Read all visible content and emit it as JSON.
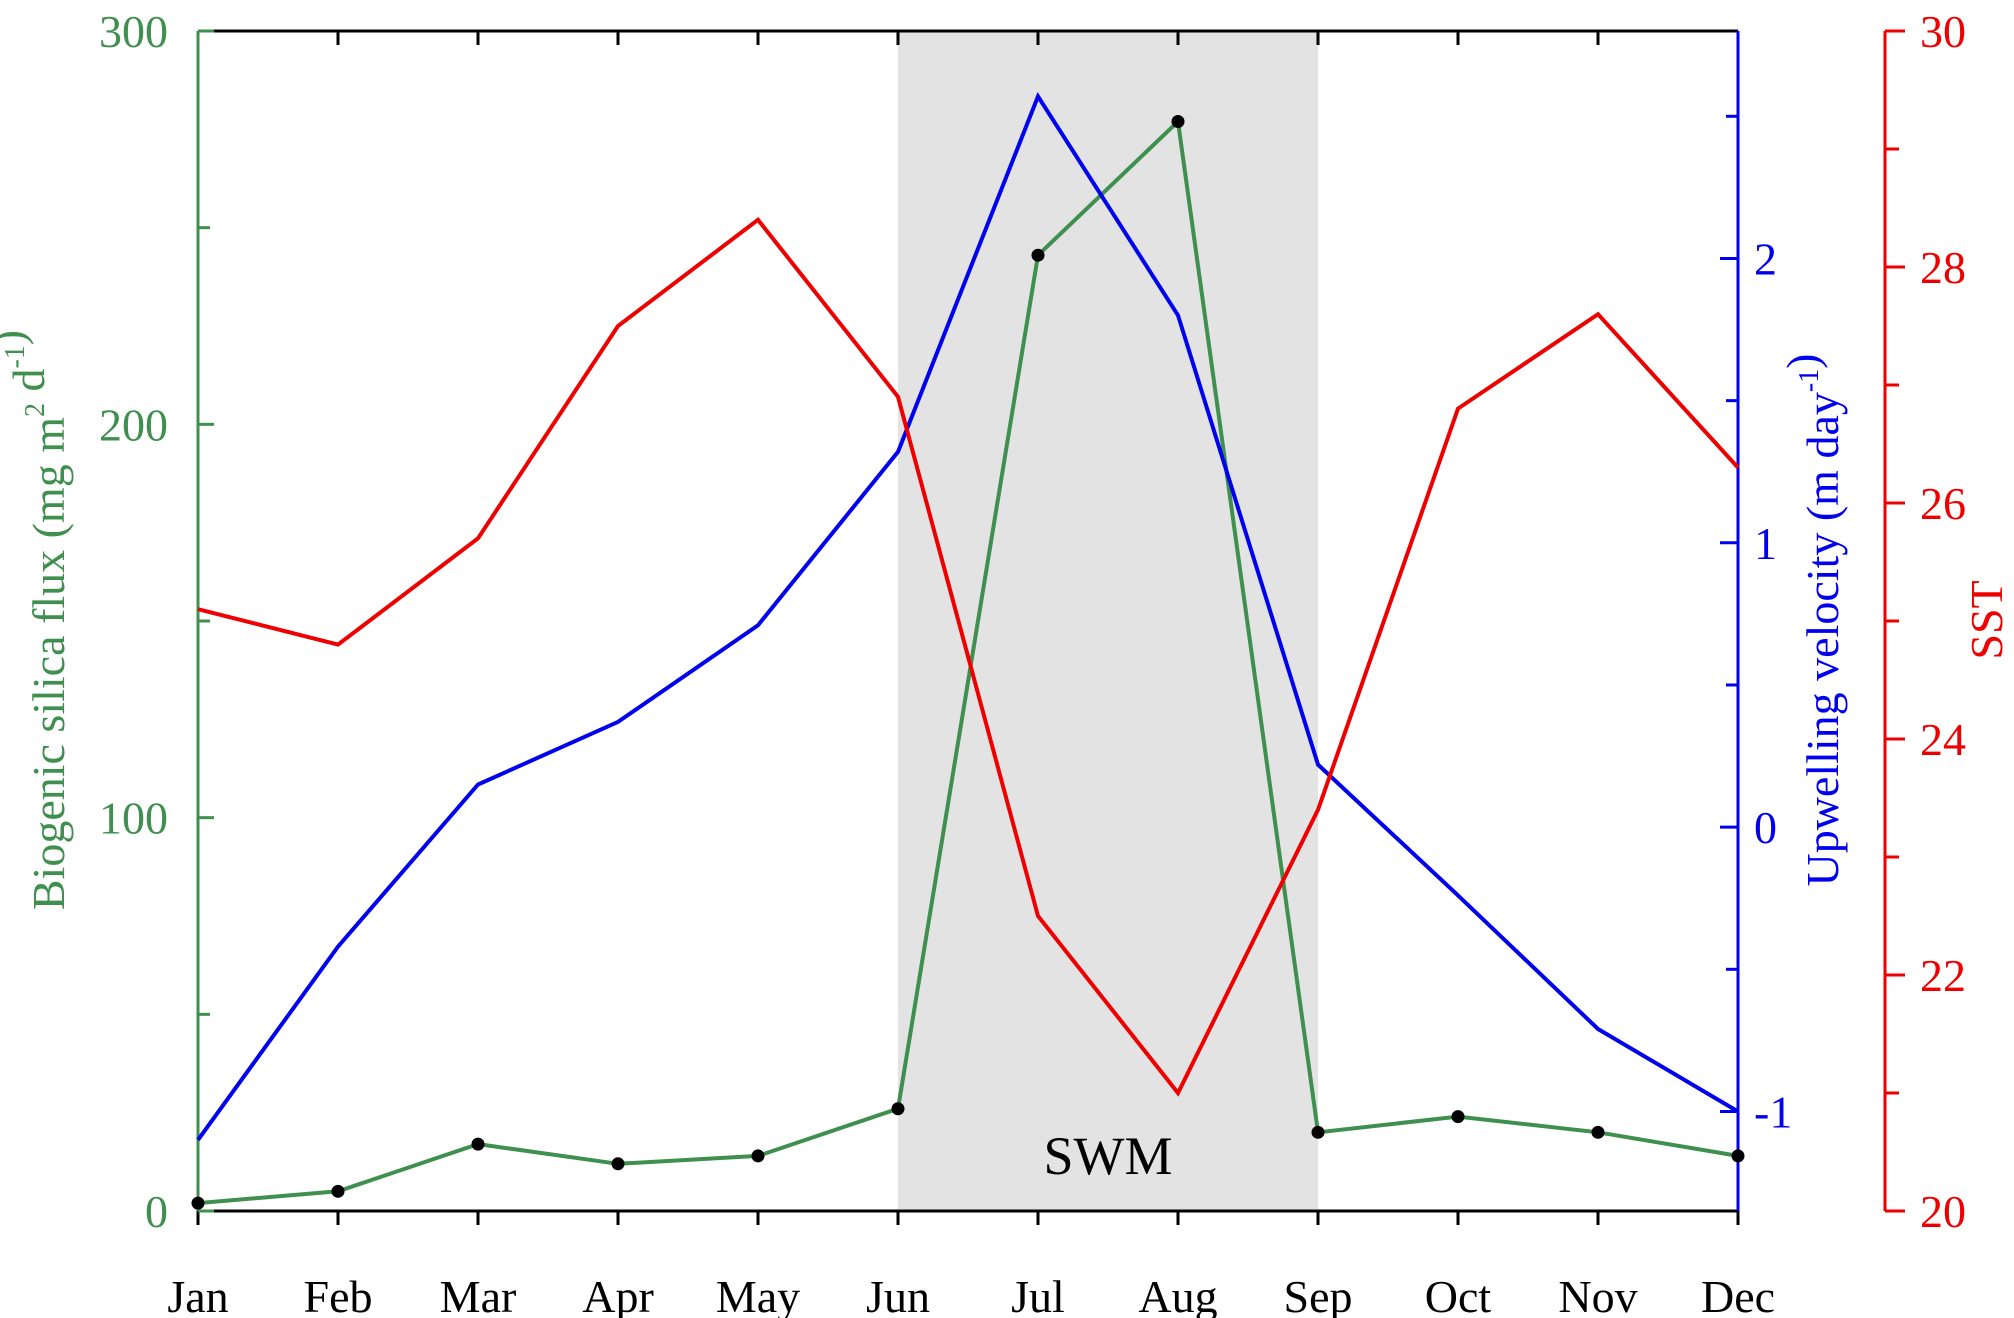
{
  "chart_data": {
    "type": "line",
    "categories": [
      "Jan",
      "Feb",
      "Mar",
      "Apr",
      "May",
      "Jun",
      "Jul",
      "Aug",
      "Sep",
      "Oct",
      "Nov",
      "Dec"
    ],
    "x_axis": {
      "tick_labels": [
        "Jan",
        "Feb",
        "Mar",
        "Apr",
        "May",
        "Jun",
        "Jul",
        "Aug",
        "Sep",
        "Oct",
        "Nov",
        "Dec"
      ]
    },
    "y_axes": {
      "left": {
        "label_main": "Biogenic silica flux (mg m",
        "label_sup1": "2",
        "label_mid": " d",
        "label_sup2": "-1",
        "label_end": ")",
        "ylim": [
          0,
          300
        ],
        "ticks": [
          0,
          100,
          200,
          300
        ],
        "tick_labels": [
          "0",
          "100",
          "200",
          "300"
        ],
        "color": "#3f8f4f"
      },
      "right1": {
        "label_main": "Upwelling velocity (m day",
        "label_sup": "-1",
        "label_end": ")",
        "ylim": [
          -1.35,
          2.8
        ],
        "ticks": [
          -1,
          0,
          1,
          2
        ],
        "tick_labels": [
          "-1",
          "0",
          "1",
          "2"
        ],
        "color": "#0000ee"
      },
      "right2": {
        "label": "SST",
        "ylim": [
          20,
          30
        ],
        "ticks": [
          20,
          22,
          24,
          26,
          28,
          30
        ],
        "tick_labels": [
          "20",
          "22",
          "24",
          "26",
          "28",
          "30"
        ],
        "color": "#ee0000"
      }
    },
    "series": [
      {
        "axis": "left",
        "color": "#3f8f4f",
        "markers": true,
        "values": [
          2,
          5,
          17,
          12,
          14,
          26,
          243,
          277,
          20,
          24,
          20,
          14
        ]
      },
      {
        "axis": "right1",
        "color": "#0000ee",
        "markers": false,
        "values": [
          -1.1,
          -0.42,
          0.15,
          0.37,
          0.71,
          1.32,
          2.57,
          1.8,
          0.22,
          -0.24,
          -0.71,
          -1.0
        ]
      },
      {
        "axis": "right2",
        "color": "#ee0000",
        "markers": false,
        "values": [
          25.1,
          24.8,
          25.7,
          27.5,
          28.4,
          26.9,
          22.5,
          21.0,
          23.4,
          26.8,
          27.6,
          26.3
        ]
      }
    ],
    "shaded_region": {
      "label": "SWM",
      "x_start": "Jun",
      "x_end": "Sep",
      "color": "#e3e3e3"
    },
    "grid": false
  }
}
